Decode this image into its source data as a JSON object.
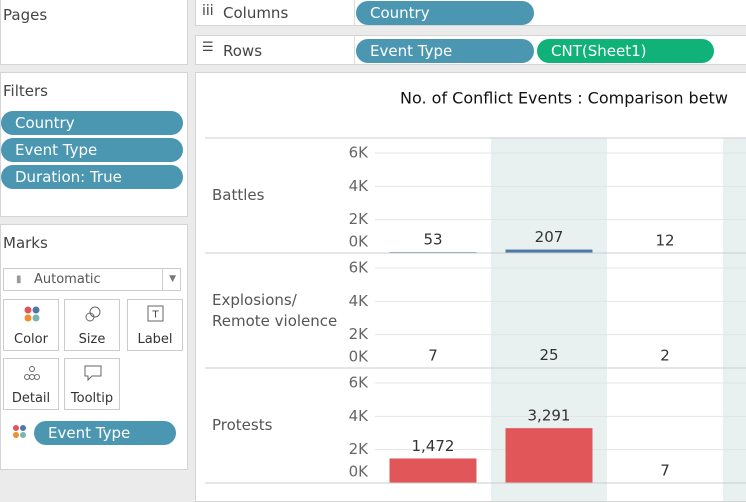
{
  "pages": {
    "title": "Pages"
  },
  "shelves": {
    "columns": {
      "label": "Columns",
      "pills": [
        "Country"
      ]
    },
    "rows": {
      "label": "Rows",
      "pills": [
        "Event Type",
        "CNT(Sheet1)"
      ]
    }
  },
  "filters": {
    "title": "Filters",
    "pills": [
      "Country",
      "Event Type",
      "Duration: True"
    ]
  },
  "marks": {
    "title": "Marks",
    "mark_type": "Automatic",
    "cards": [
      "Color",
      "Size",
      "Label",
      "Detail",
      "Tooltip"
    ],
    "pills": [
      "Event Type"
    ]
  },
  "chart_data": {
    "type": "bar",
    "title": "No. of Conflict Events :  Comparison betw",
    "categories": [
      null,
      null,
      null
    ],
    "series": [
      {
        "name": "Battles",
        "color": "#4e79a7",
        "values": [
          53,
          207,
          12
        ]
      },
      {
        "name": "Explosions/ Remote violence",
        "color": "#f28e2b",
        "values": [
          7,
          25,
          2
        ]
      },
      {
        "name": "Protests",
        "color": "#e15759",
        "values": [
          1472,
          3291,
          7
        ],
        "value_labels": [
          "1,472",
          "3,291",
          "7"
        ]
      }
    ],
    "ylim": [
      0,
      6900
    ],
    "yticks": [
      {
        "value": 0,
        "label": "0K"
      },
      {
        "value": 2000,
        "label": "2K"
      },
      {
        "value": 4000,
        "label": "4K"
      },
      {
        "value": 6000,
        "label": "6K"
      }
    ],
    "grid": true
  }
}
